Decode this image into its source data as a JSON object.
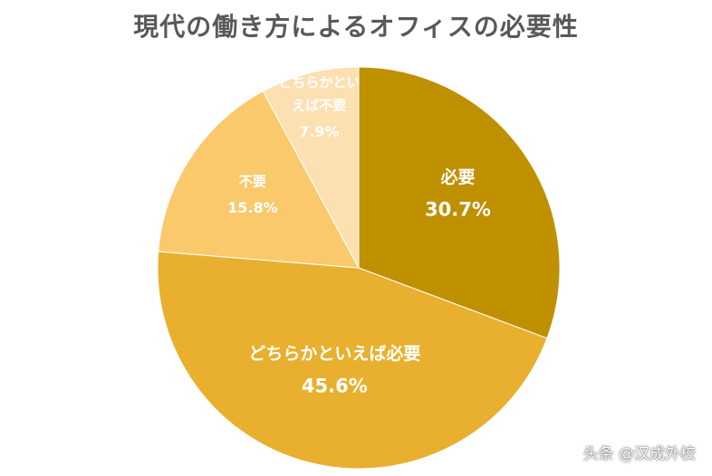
{
  "chart_data": {
    "type": "pie",
    "title": "現代の働き方によるオフィスの必要性",
    "slices": [
      {
        "label": "必要",
        "value": 30.7,
        "value_label": "30.7%",
        "color": "#bf9000"
      },
      {
        "label": "どちらかといえば必要",
        "value": 45.6,
        "value_label": "45.6%",
        "color": "#e8b02e"
      },
      {
        "label": "不要",
        "value": 15.8,
        "value_label": "15.8%",
        "color": "#f9c96c"
      },
      {
        "label": "どちらかといえば不要",
        "value": 7.9,
        "value_label": "7.9%",
        "color": "#fde0b2"
      }
    ],
    "start_angle_deg": 0,
    "direction": "clockwise",
    "legend": "none"
  },
  "watermark": "头条 @汉成外校"
}
